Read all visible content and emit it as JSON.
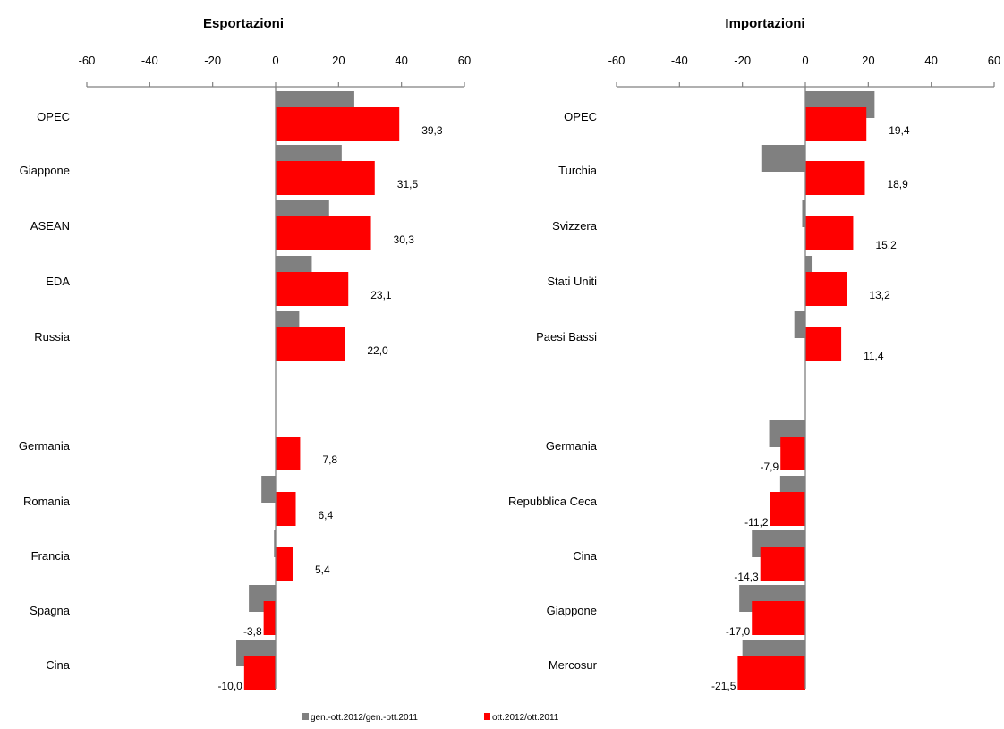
{
  "colors": {
    "gray": "#808080",
    "red": "#ff0000",
    "axis": "#808080"
  },
  "legend": {
    "items": [
      {
        "label": "gen.-ott.2012/gen.-ott.2011",
        "color": "#808080"
      },
      {
        "label": "ott.2012/ott.2011",
        "color": "#ff0000"
      }
    ]
  },
  "chart_data": [
    {
      "type": "bar",
      "orientation": "horizontal",
      "title": "Esportazioni",
      "xlim": [
        -60,
        60
      ],
      "xticks": [
        "-60",
        "-40",
        "-20",
        "0",
        "20",
        "40",
        "60"
      ],
      "axis_position": "top",
      "categories": [
        "OPEC",
        "Giappone",
        "ASEAN",
        "EDA",
        "Russia",
        "Germania",
        "Romania",
        "Francia",
        "Spagna",
        "Cina"
      ],
      "series": [
        {
          "name": "gen.-ott.2012/gen.-ott.2011",
          "values": [
            25,
            21,
            17,
            11.5,
            7.5,
            0,
            -4.5,
            -0.5,
            -8.5,
            -12.5
          ]
        },
        {
          "name": "ott.2012/ott.2011",
          "values": [
            39.3,
            31.5,
            30.3,
            23.1,
            22.0,
            7.8,
            6.4,
            5.4,
            -3.8,
            -10.0
          ]
        }
      ],
      "data_labels": [
        "39,3",
        "31,5",
        "30,3",
        "23,1",
        "22,0",
        "7,8",
        "6,4",
        "5,4",
        "-3,8",
        "-10,0"
      ]
    },
    {
      "type": "bar",
      "orientation": "horizontal",
      "title": "Importazioni",
      "xlim": [
        -60,
        60
      ],
      "xticks": [
        "-60",
        "-40",
        "-20",
        "0",
        "20",
        "40",
        "60"
      ],
      "axis_position": "top",
      "categories": [
        "OPEC",
        "Turchia",
        "Svizzera",
        "Stati Uniti",
        "Paesi Bassi",
        "Germania",
        "Repubblica Ceca",
        "Cina",
        "Giappone",
        "Mercosur"
      ],
      "series": [
        {
          "name": "gen.-ott.2012/gen.-ott.2011",
          "values": [
            22,
            -14,
            -1,
            2,
            -3.5,
            -11.5,
            -8,
            -17,
            -21,
            -20
          ]
        },
        {
          "name": "ott.2012/ott.2011",
          "values": [
            19.4,
            18.9,
            15.2,
            13.2,
            11.4,
            -7.9,
            -11.2,
            -14.3,
            -17.0,
            -21.5
          ]
        }
      ],
      "data_labels": [
        "19,4",
        "18,9",
        "15,2",
        "13,2",
        "11,4",
        "-7,9",
        "-11,2",
        "-14,3",
        "-17,0",
        "-21,5"
      ]
    }
  ]
}
